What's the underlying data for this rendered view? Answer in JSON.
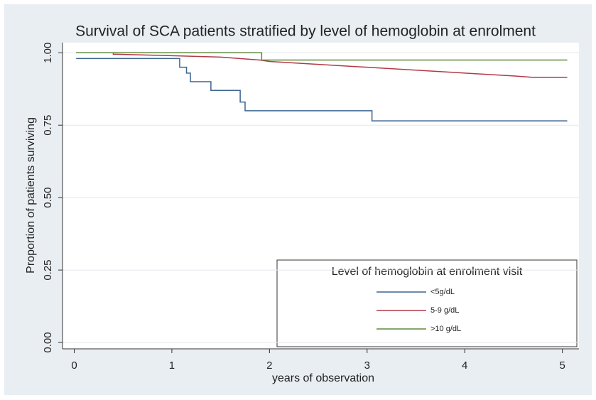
{
  "chart_data": {
    "type": "line",
    "title": "Survival of SCA patients stratified by level of hemoglobin at enrolment",
    "x_label": "years of observation",
    "y_label": "Proportion of patients surviving",
    "legend_title": "Level of hemoglobin at enrolment visit",
    "legend_position": "lower right",
    "grid": true,
    "xlim": [
      -0.12,
      5.17
    ],
    "ylim": [
      -0.022,
      1.035
    ],
    "xticks": [
      0,
      1,
      2,
      3,
      4,
      5
    ],
    "yticks": [
      {
        "value": 0,
        "label": "0.00"
      },
      {
        "value": 0.25,
        "label": "0.25"
      },
      {
        "value": 0.5,
        "label": "0.50"
      },
      {
        "value": 0.75,
        "label": "0.75"
      },
      {
        "value": 1,
        "label": "1.00"
      }
    ],
    "series": [
      {
        "name": "<5g/dL",
        "color": "#3d6591",
        "x": [
          0.02,
          1.08,
          1.08,
          1.15,
          1.15,
          1.19,
          1.19,
          1.4,
          1.4,
          1.7,
          1.7,
          1.75,
          1.75,
          3.05,
          3.05,
          5.05
        ],
        "values": [
          0.98,
          0.98,
          0.95,
          0.95,
          0.93,
          0.93,
          0.9,
          0.9,
          0.87,
          0.87,
          0.83,
          0.83,
          0.8,
          0.8,
          0.765,
          0.765
        ]
      },
      {
        "name": "5-9 g/dL",
        "color": "#b03a48",
        "x": [
          0.02,
          0.4,
          0.4,
          1.0,
          1.5,
          1.9,
          2.0,
          2.5,
          3.0,
          3.5,
          4.0,
          4.5,
          4.7,
          5.05
        ],
        "values": [
          1,
          1,
          0.995,
          0.99,
          0.985,
          0.975,
          0.97,
          0.96,
          0.95,
          0.94,
          0.93,
          0.92,
          0.915,
          0.915
        ]
      },
      {
        "name": ">10 g/dL",
        "color": "#5d8a3a",
        "x": [
          0.02,
          1.92,
          1.92,
          5.05
        ],
        "values": [
          1,
          1,
          0.975,
          0.975
        ]
      }
    ]
  }
}
